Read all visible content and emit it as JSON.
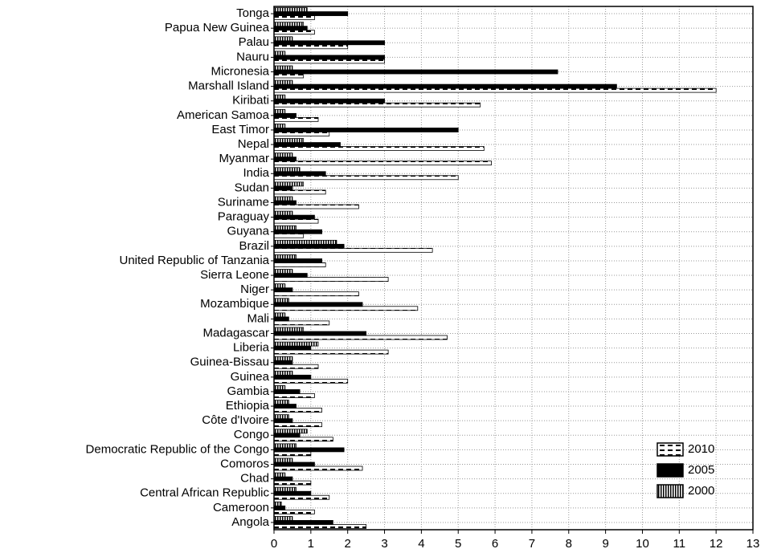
{
  "chart_data": {
    "type": "bar",
    "orientation": "horizontal",
    "categories": [
      "Tonga",
      "Papua New Guinea",
      "Palau",
      "Nauru",
      "Micronesia",
      "Marshall Island",
      "Kiribati",
      "American Samoa",
      "East Timor",
      "Nepal",
      "Myanmar",
      "India",
      "Sudan",
      "Suriname",
      "Paraguay",
      "Guyana",
      "Brazil",
      "United Republic of Tanzania",
      "Sierra Leone",
      "Niger",
      "Mozambique",
      "Mali",
      "Madagascar",
      "Liberia",
      "Guinea-Bissau",
      "Guinea",
      "Gambia",
      "Ethiopia",
      "Côte d'Ivoire",
      "Congo",
      "Democratic Republic of the Congo",
      "Comoros",
      "Chad",
      "Central African Republic",
      "Cameroon",
      "Angola"
    ],
    "series": [
      {
        "name": "2010",
        "color": "#000000",
        "pattern": "dashes",
        "values": [
          1.1,
          1.1,
          2.0,
          3.0,
          0.8,
          12.0,
          5.6,
          1.2,
          1.5,
          5.7,
          5.9,
          5.0,
          1.4,
          2.3,
          1.2,
          0.8,
          4.3,
          1.4,
          3.1,
          2.3,
          3.9,
          1.5,
          4.7,
          3.1,
          1.2,
          2.0,
          1.1,
          1.3,
          1.3,
          1.6,
          1.0,
          2.4,
          1.0,
          1.5,
          1.1,
          2.5
        ]
      },
      {
        "name": "2005",
        "color": "#000000",
        "pattern": "solid",
        "values": [
          2.0,
          0.9,
          3.0,
          3.0,
          7.7,
          9.3,
          3.0,
          0.6,
          5.0,
          1.8,
          0.6,
          1.4,
          0.5,
          0.6,
          1.1,
          1.3,
          1.9,
          1.3,
          0.9,
          0.5,
          2.4,
          0.4,
          2.5,
          1.0,
          0.5,
          1.0,
          0.7,
          0.6,
          0.5,
          0.7,
          1.9,
          1.1,
          0.5,
          1.0,
          0.3,
          1.6
        ]
      },
      {
        "name": "2000",
        "color": "#000000",
        "pattern": "stripes",
        "values": [
          0.9,
          0.8,
          0.5,
          0.3,
          0.5,
          0.5,
          0.3,
          0.3,
          0.3,
          0.8,
          0.5,
          0.7,
          0.8,
          0.5,
          0.5,
          0.6,
          1.7,
          0.6,
          0.5,
          0.3,
          0.4,
          0.3,
          0.8,
          1.2,
          0.5,
          0.5,
          0.3,
          0.4,
          0.4,
          0.9,
          0.6,
          0.5,
          0.3,
          0.6,
          0.2,
          0.5
        ]
      }
    ],
    "xlim": [
      0,
      13
    ],
    "xticks": [
      0,
      1,
      2,
      3,
      4,
      5,
      6,
      7,
      8,
      9,
      10,
      11,
      12,
      13
    ],
    "grid": true,
    "legend": "lower right"
  }
}
